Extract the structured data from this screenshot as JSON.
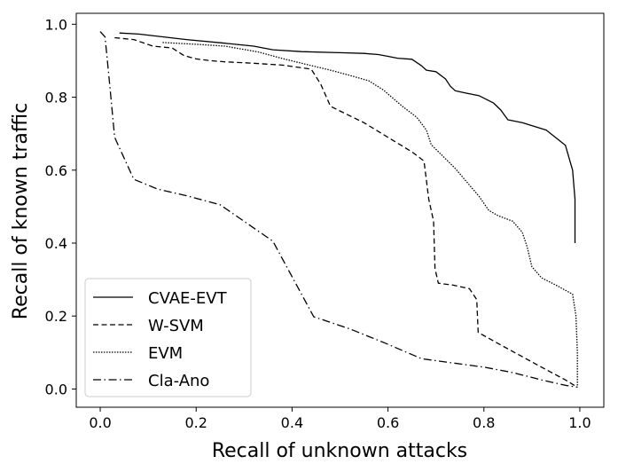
{
  "chart_data": {
    "type": "line",
    "xlabel": "Recall of unknown attacks",
    "ylabel": "Recall of known traffic",
    "xlim": [
      -0.05,
      1.05
    ],
    "ylim": [
      -0.05,
      1.03
    ],
    "xticks": [
      "0.0",
      "0.2",
      "0.4",
      "0.6",
      "0.8",
      "1.0"
    ],
    "xtick_values": [
      0.0,
      0.2,
      0.4,
      0.6,
      0.8,
      1.0
    ],
    "yticks": [
      "0.0",
      "0.2",
      "0.4",
      "0.6",
      "0.8",
      "1.0"
    ],
    "ytick_values": [
      0.0,
      0.2,
      0.4,
      0.6,
      0.8,
      1.0
    ],
    "grid": false,
    "legend_position": "lower-left",
    "series": [
      {
        "name": "CVAE-EVT",
        "style": "solid",
        "color": "#000000",
        "points": [
          [
            0.04,
            0.976
          ],
          [
            0.08,
            0.973
          ],
          [
            0.12,
            0.967
          ],
          [
            0.18,
            0.958
          ],
          [
            0.26,
            0.948
          ],
          [
            0.32,
            0.94
          ],
          [
            0.36,
            0.93
          ],
          [
            0.42,
            0.925
          ],
          [
            0.5,
            0.922
          ],
          [
            0.55,
            0.92
          ],
          [
            0.58,
            0.917
          ],
          [
            0.6,
            0.912
          ],
          [
            0.62,
            0.907
          ],
          [
            0.65,
            0.904
          ],
          [
            0.67,
            0.886
          ],
          [
            0.68,
            0.874
          ],
          [
            0.7,
            0.87
          ],
          [
            0.72,
            0.85
          ],
          [
            0.73,
            0.83
          ],
          [
            0.74,
            0.818
          ],
          [
            0.76,
            0.812
          ],
          [
            0.79,
            0.804
          ],
          [
            0.82,
            0.784
          ],
          [
            0.835,
            0.765
          ],
          [
            0.85,
            0.738
          ],
          [
            0.88,
            0.73
          ],
          [
            0.93,
            0.71
          ],
          [
            0.97,
            0.668
          ],
          [
            0.985,
            0.6
          ],
          [
            0.99,
            0.52
          ],
          [
            0.99,
            0.4
          ]
        ]
      },
      {
        "name": "W-SVM",
        "style": "dashed",
        "color": "#000000",
        "points": [
          [
            0.03,
            0.963
          ],
          [
            0.07,
            0.958
          ],
          [
            0.11,
            0.94
          ],
          [
            0.15,
            0.935
          ],
          [
            0.175,
            0.914
          ],
          [
            0.2,
            0.905
          ],
          [
            0.23,
            0.9
          ],
          [
            0.26,
            0.897
          ],
          [
            0.32,
            0.893
          ],
          [
            0.38,
            0.888
          ],
          [
            0.44,
            0.877
          ],
          [
            0.46,
            0.835
          ],
          [
            0.48,
            0.775
          ],
          [
            0.55,
            0.73
          ],
          [
            0.6,
            0.69
          ],
          [
            0.65,
            0.65
          ],
          [
            0.675,
            0.625
          ],
          [
            0.685,
            0.52
          ],
          [
            0.695,
            0.46
          ],
          [
            0.698,
            0.33
          ],
          [
            0.705,
            0.29
          ],
          [
            0.735,
            0.285
          ],
          [
            0.77,
            0.275
          ],
          [
            0.785,
            0.245
          ],
          [
            0.788,
            0.155
          ],
          [
            0.85,
            0.11
          ],
          [
            0.92,
            0.06
          ],
          [
            0.97,
            0.025
          ],
          [
            0.995,
            0.005
          ]
        ]
      },
      {
        "name": "EVM",
        "style": "dotted",
        "color": "#000000",
        "points": [
          [
            0.13,
            0.95
          ],
          [
            0.2,
            0.945
          ],
          [
            0.26,
            0.94
          ],
          [
            0.33,
            0.924
          ],
          [
            0.38,
            0.906
          ],
          [
            0.43,
            0.89
          ],
          [
            0.48,
            0.874
          ],
          [
            0.52,
            0.86
          ],
          [
            0.56,
            0.845
          ],
          [
            0.59,
            0.82
          ],
          [
            0.63,
            0.775
          ],
          [
            0.66,
            0.745
          ],
          [
            0.68,
            0.71
          ],
          [
            0.69,
            0.67
          ],
          [
            0.74,
            0.605
          ],
          [
            0.79,
            0.528
          ],
          [
            0.81,
            0.49
          ],
          [
            0.83,
            0.475
          ],
          [
            0.86,
            0.46
          ],
          [
            0.88,
            0.43
          ],
          [
            0.89,
            0.39
          ],
          [
            0.9,
            0.335
          ],
          [
            0.92,
            0.305
          ],
          [
            0.95,
            0.285
          ],
          [
            0.985,
            0.26
          ],
          [
            0.992,
            0.2
          ],
          [
            0.995,
            0.1
          ],
          [
            0.995,
            0.005
          ]
        ]
      },
      {
        "name": "Cla-Ano",
        "style": "dashdot",
        "color": "#000000",
        "points": [
          [
            0.0,
            0.98
          ],
          [
            0.01,
            0.965
          ],
          [
            0.02,
            0.83
          ],
          [
            0.03,
            0.69
          ],
          [
            0.07,
            0.575
          ],
          [
            0.12,
            0.548
          ],
          [
            0.18,
            0.53
          ],
          [
            0.25,
            0.505
          ],
          [
            0.36,
            0.405
          ],
          [
            0.445,
            0.198
          ],
          [
            0.52,
            0.165
          ],
          [
            0.59,
            0.128
          ],
          [
            0.67,
            0.083
          ],
          [
            0.72,
            0.074
          ],
          [
            0.8,
            0.06
          ],
          [
            0.86,
            0.045
          ],
          [
            0.92,
            0.025
          ],
          [
            0.97,
            0.01
          ],
          [
            0.995,
            0.005
          ]
        ]
      }
    ]
  }
}
